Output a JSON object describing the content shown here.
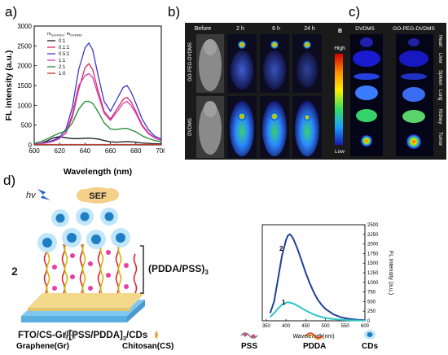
{
  "panels": {
    "a": "a)",
    "b": "b)",
    "c": "c)",
    "d": "d)"
  },
  "panel_a": {
    "legend_header": [
      "m",
      "GO-PEG",
      ": m",
      "DVDMS"
    ],
    "legend_items": [
      {
        "label": "0:1",
        "color": "#1a1a1a"
      },
      {
        "label": "0.1:1",
        "color": "#e0245e"
      },
      {
        "label": "0.5:1",
        "color": "#3b37c9"
      },
      {
        "label": "1:1",
        "color": "#d43ab8"
      },
      {
        "label": "2:1",
        "color": "#1e8a2c"
      },
      {
        "label": "1:0",
        "color": "#c0392b"
      }
    ]
  },
  "panel_b": {
    "col_headers": [
      "Before",
      "2 h",
      "6 h",
      "24 h"
    ],
    "row_labels": [
      "GO-PEG-DVDMS",
      "DVDMS"
    ],
    "colorbar_title": "B",
    "colorbar_high": "High",
    "colorbar_low": "Low"
  },
  "panel_c": {
    "col_headers": [
      "DVDMS",
      "GO-PEG-DVDMS"
    ],
    "organs": [
      "Heart",
      "Liver",
      "Spleen",
      "Lung",
      "Kidney",
      "Tumor"
    ]
  },
  "panel_d": {
    "hv": "hv",
    "sef": "SEF",
    "multilayer": "(PDDA/PSS)",
    "multilayer_sub": "3",
    "left_num": "2",
    "structure_label": "FTO/CS-Gr/[PSS/PDDA]",
    "structure_sub": "3",
    "structure_tail": "/CDs",
    "legend": [
      "Graphene(Gr)",
      "Chitosan(CS)",
      "PSS",
      "PDDA",
      "CDs"
    ],
    "inset_curve_labels": [
      "2",
      "1"
    ]
  },
  "chart_data": [
    {
      "type": "line",
      "xlabel": "Wavelength (nm)",
      "ylabel": "FL intensity (a.u.)",
      "xlim": [
        600,
        700
      ],
      "ylim": [
        0,
        3000
      ],
      "xticks": [
        600,
        620,
        640,
        660,
        680,
        700
      ],
      "yticks": [
        0,
        500,
        1000,
        1500,
        2000,
        2500,
        3000
      ],
      "x": [
        600,
        605,
        610,
        615,
        620,
        625,
        630,
        635,
        640,
        643,
        646,
        650,
        655,
        660,
        665,
        670,
        673,
        676,
        680,
        685,
        690,
        695,
        700
      ],
      "series": [
        {
          "name": "0:1",
          "values": [
            20,
            40,
            100,
            180,
            210,
            180,
            160,
            160,
            170,
            170,
            165,
            150,
            110,
            80,
            70,
            80,
            85,
            80,
            70,
            50,
            40,
            30,
            25
          ]
        },
        {
          "name": "0.1:1",
          "values": [
            20,
            35,
            60,
            100,
            170,
            300,
            700,
            1400,
            1950,
            2050,
            1900,
            1400,
            850,
            650,
            900,
            1150,
            1200,
            1100,
            850,
            500,
            300,
            180,
            120
          ]
        },
        {
          "name": "0.5:1",
          "values": [
            20,
            40,
            70,
            120,
            200,
            400,
            950,
            1900,
            2450,
            2570,
            2400,
            1800,
            1100,
            850,
            1150,
            1450,
            1500,
            1350,
            1050,
            650,
            380,
            220,
            150
          ]
        },
        {
          "name": "1:1",
          "values": [
            15,
            30,
            55,
            90,
            160,
            320,
            780,
            1500,
            1750,
            1800,
            1700,
            1300,
            800,
            620,
            830,
            1050,
            1100,
            1000,
            800,
            470,
            280,
            170,
            110
          ]
        },
        {
          "name": "2:1",
          "values": [
            40,
            80,
            150,
            230,
            300,
            350,
            550,
            900,
            1100,
            1100,
            1050,
            850,
            560,
            400,
            390,
            420,
            420,
            380,
            330,
            230,
            160,
            110,
            80
          ]
        },
        {
          "name": "1:0",
          "values": [
            10,
            10,
            10,
            10,
            10,
            10,
            10,
            10,
            10,
            10,
            10,
            10,
            10,
            10,
            10,
            10,
            10,
            10,
            10,
            10,
            10,
            10,
            10
          ]
        }
      ]
    },
    {
      "type": "line",
      "xlabel": "Wavelength(nm)",
      "ylabel": "FL Intensity (a.u.)",
      "xlim": [
        340,
        600
      ],
      "ylim": [
        0,
        2500
      ],
      "xticks": [
        350,
        400,
        450,
        500,
        550,
        600
      ],
      "yticks": [
        0,
        250,
        500,
        750,
        1000,
        1250,
        1500,
        1750,
        2000,
        2250,
        2500
      ],
      "x": [
        360,
        370,
        380,
        390,
        400,
        405,
        410,
        415,
        420,
        430,
        440,
        450,
        460,
        470,
        480,
        490,
        500,
        520,
        540,
        560,
        580,
        600
      ],
      "series": [
        {
          "values": [
            200,
            500,
            1100,
            1700,
            2100,
            2220,
            2250,
            2200,
            2100,
            1850,
            1550,
            1250,
            980,
            750,
            560,
            420,
            310,
            170,
            90,
            50,
            30,
            20
          ]
        },
        {
          "values": [
            100,
            200,
            320,
            420,
            470,
            480,
            475,
            460,
            440,
            390,
            330,
            270,
            215,
            170,
            130,
            100,
            75,
            45,
            25,
            15,
            10,
            8
          ]
        }
      ]
    }
  ]
}
